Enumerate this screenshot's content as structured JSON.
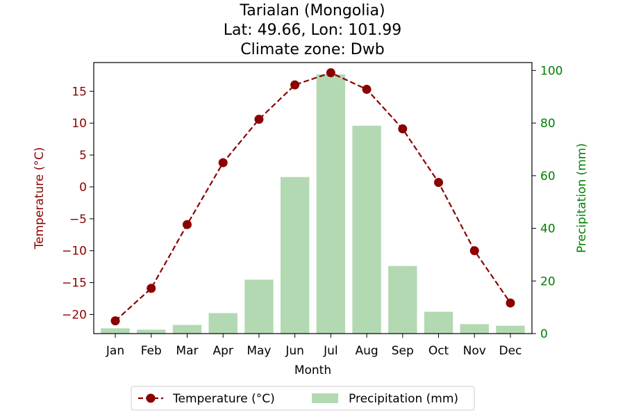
{
  "chart_data": {
    "type": "bar+line",
    "title": "Tarialan (Mongolia)\nLat: 49.66, Lon: 101.99\nClimate zone: Dwb",
    "title_lines": [
      "Tarialan (Mongolia)",
      "Lat: 49.66, Lon: 101.99",
      "Climate zone: Dwb"
    ],
    "xlabel": "Month",
    "categories": [
      "Jan",
      "Feb",
      "Mar",
      "Apr",
      "May",
      "Jun",
      "Jul",
      "Aug",
      "Sep",
      "Oct",
      "Nov",
      "Dec"
    ],
    "series": [
      {
        "name": "Temperature (°C)",
        "type": "line",
        "axis": "left",
        "color": "#8b0000",
        "values": [
          -21.0,
          -15.9,
          -5.9,
          3.8,
          10.6,
          16.0,
          17.9,
          15.3,
          9.1,
          0.7,
          -10.0,
          -18.2
        ]
      },
      {
        "name": "Precipitation (mm)",
        "type": "bar",
        "axis": "right",
        "color": "#b2d9b2",
        "values": [
          2.0,
          1.5,
          3.3,
          7.8,
          20.5,
          59.5,
          98.5,
          79.0,
          25.7,
          8.3,
          3.6,
          3.0
        ]
      }
    ],
    "y_left": {
      "label": "Temperature (°C)",
      "color": "#8b0000",
      "lim": [
        -23,
        19.5
      ],
      "ticks": [
        -20,
        -15,
        -10,
        -5,
        0,
        5,
        10,
        15
      ]
    },
    "y_right": {
      "label": "Precipitation (mm)",
      "color": "#008000",
      "lim": [
        0,
        103
      ],
      "ticks": [
        0,
        20,
        40,
        60,
        80,
        100
      ]
    },
    "grid": false,
    "legend_position": "bottom-center"
  }
}
